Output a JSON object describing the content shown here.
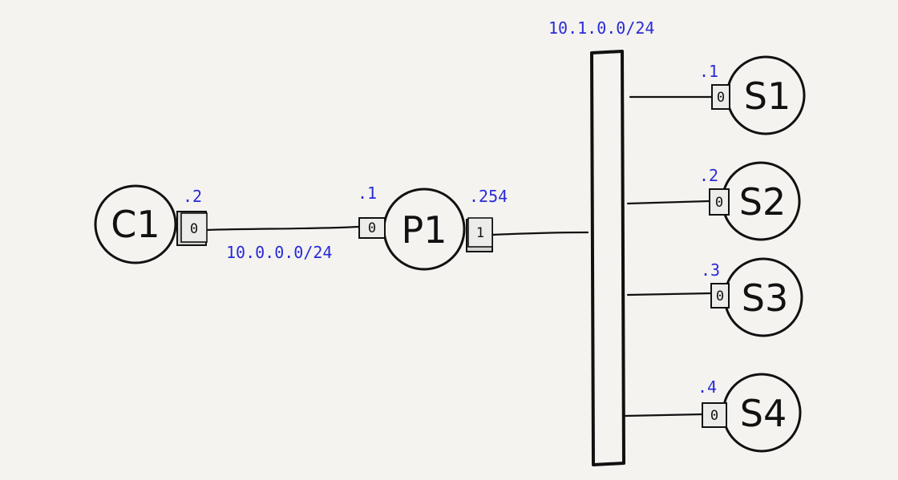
{
  "nodes": {
    "c1": {
      "name": "C1",
      "port": "0",
      "ip": ".2"
    },
    "p1": {
      "name": "P1",
      "port_left": "0",
      "port_right": "1",
      "ip_left": ".1",
      "ip_right": ".254"
    },
    "s1": {
      "name": "S1",
      "port": "0",
      "ip": ".1"
    },
    "s2": {
      "name": "S2",
      "port": "0",
      "ip": ".2"
    },
    "s3": {
      "name": "S3",
      "port": "0",
      "ip": ".3"
    },
    "s4": {
      "name": "S4",
      "port": "0",
      "ip": ".4"
    }
  },
  "networks": {
    "link": "10.0.0.0/24",
    "bus": "10.1.0.0/24"
  },
  "colors": {
    "ink": "#111111",
    "address": "#2a2ad8",
    "port_fill": "#e2e2e0",
    "background": "#f4f3f0"
  }
}
